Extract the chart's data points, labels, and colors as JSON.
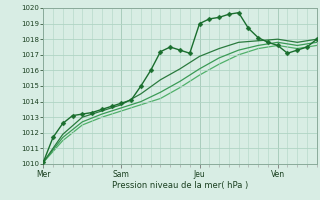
{
  "title": "",
  "xlabel": "Pression niveau de la mer( hPa )",
  "ylim": [
    1010,
    1020
  ],
  "yticks": [
    1010,
    1011,
    1012,
    1013,
    1014,
    1015,
    1016,
    1017,
    1018,
    1019,
    1020
  ],
  "background_color": "#d8ede4",
  "grid_color": "#b0d4c4",
  "xtick_labels": [
    "Mer",
    "Sam",
    "Jeu",
    "Ven"
  ],
  "xtick_positions": [
    0,
    2,
    4,
    6
  ],
  "series": [
    {
      "x": [
        0,
        0.25,
        0.5,
        0.75,
        1.0,
        1.25,
        1.5,
        1.75,
        2.0,
        2.25,
        2.5,
        2.75,
        3.0,
        3.25,
        3.5,
        3.75,
        4.0,
        4.25,
        4.5,
        4.75,
        5.0,
        5.25,
        5.5,
        5.75,
        6.0,
        6.25,
        6.5,
        6.75,
        7.0
      ],
      "y": [
        1010.1,
        1011.7,
        1012.6,
        1013.1,
        1013.2,
        1013.3,
        1013.5,
        1013.7,
        1013.9,
        1014.1,
        1015.0,
        1016.0,
        1017.2,
        1017.5,
        1017.3,
        1017.1,
        1019.0,
        1019.3,
        1019.4,
        1019.6,
        1019.7,
        1018.7,
        1018.1,
        1017.8,
        1017.6,
        1017.1,
        1017.3,
        1017.5,
        1018.0
      ],
      "color": "#1a6e2e",
      "linewidth": 1.0,
      "marker": "D",
      "markersize": 2.5,
      "zorder": 5
    },
    {
      "x": [
        0,
        0.5,
        1.0,
        1.5,
        2.0,
        2.5,
        3.0,
        3.5,
        4.0,
        4.5,
        5.0,
        5.5,
        6.0,
        6.5,
        7.0
      ],
      "y": [
        1010.1,
        1011.9,
        1013.0,
        1013.4,
        1013.8,
        1014.5,
        1015.4,
        1016.1,
        1016.9,
        1017.4,
        1017.8,
        1017.9,
        1018.0,
        1017.8,
        1018.0
      ],
      "color": "#2a7a3e",
      "linewidth": 0.9,
      "marker": null,
      "markersize": 0,
      "zorder": 3
    },
    {
      "x": [
        0,
        0.5,
        1.0,
        1.5,
        2.0,
        2.5,
        3.0,
        3.5,
        4.0,
        4.5,
        5.0,
        5.5,
        6.0,
        6.5,
        7.0
      ],
      "y": [
        1010.1,
        1011.7,
        1012.7,
        1013.2,
        1013.6,
        1014.0,
        1014.6,
        1015.3,
        1016.1,
        1016.8,
        1017.3,
        1017.6,
        1017.8,
        1017.6,
        1017.8
      ],
      "color": "#3a9a55",
      "linewidth": 0.9,
      "marker": null,
      "markersize": 0,
      "zorder": 2
    },
    {
      "x": [
        0,
        0.5,
        1.0,
        1.5,
        2.0,
        2.5,
        3.0,
        3.5,
        4.0,
        4.5,
        5.0,
        5.5,
        6.0,
        6.5,
        7.0
      ],
      "y": [
        1010.1,
        1011.5,
        1012.5,
        1013.0,
        1013.4,
        1013.8,
        1014.2,
        1014.9,
        1015.7,
        1016.4,
        1017.0,
        1017.4,
        1017.6,
        1017.4,
        1017.6
      ],
      "color": "#50b06a",
      "linewidth": 0.9,
      "marker": null,
      "markersize": 0,
      "zorder": 1
    }
  ]
}
